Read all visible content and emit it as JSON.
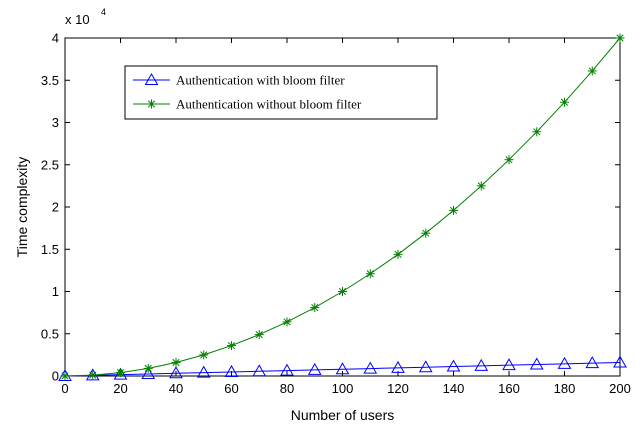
{
  "chart_data": {
    "type": "line",
    "title": "",
    "xlabel": "Number of users",
    "ylabel": "Time complexity",
    "y_multiplier": {
      "base": "x 10",
      "exponent": "4"
    },
    "xlim": [
      0,
      200
    ],
    "ylim": [
      0,
      4
    ],
    "grid": false,
    "legend_position": "top-left",
    "x_ticks": [
      "0",
      "20",
      "40",
      "60",
      "80",
      "100",
      "120",
      "140",
      "160",
      "180",
      "200"
    ],
    "y_ticks": [
      "0",
      "0.5",
      "1",
      "1.5",
      "2",
      "2.5",
      "3",
      "3.5",
      "4"
    ],
    "x": [
      0,
      10,
      20,
      30,
      40,
      50,
      60,
      70,
      80,
      90,
      100,
      110,
      120,
      130,
      140,
      150,
      160,
      170,
      180,
      190,
      200
    ],
    "series": [
      {
        "name": "Authentication with  bloom filter",
        "color": "#0000ff",
        "marker": "triangle",
        "values": [
          0,
          0.008,
          0.016,
          0.024,
          0.032,
          0.04,
          0.048,
          0.056,
          0.064,
          0.072,
          0.08,
          0.088,
          0.096,
          0.104,
          0.112,
          0.12,
          0.128,
          0.136,
          0.144,
          0.152,
          0.16
        ]
      },
      {
        "name": "Authentication without  bloom filter",
        "color": "#008000",
        "marker": "asterisk",
        "values": [
          0,
          0.01,
          0.04,
          0.09,
          0.16,
          0.25,
          0.36,
          0.49,
          0.64,
          0.81,
          1.0,
          1.21,
          1.44,
          1.69,
          1.96,
          2.25,
          2.56,
          2.89,
          3.24,
          3.61,
          4.0
        ]
      }
    ]
  }
}
